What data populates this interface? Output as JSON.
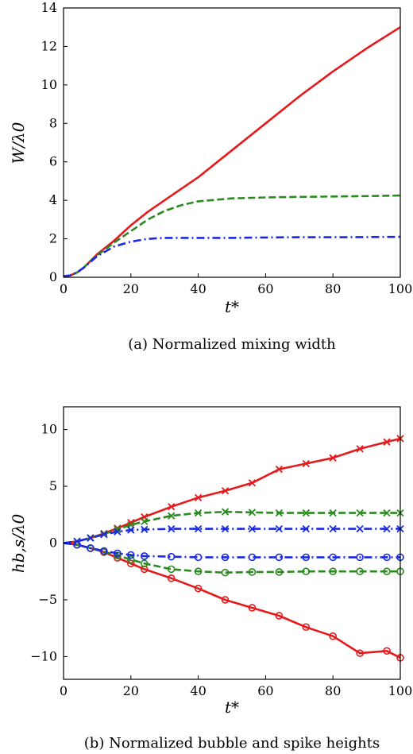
{
  "chart_data": [
    {
      "type": "line",
      "caption": "(a) Normalized mixing width",
      "xlabel": "t*",
      "ylabel": "W/λ0",
      "xlim": [
        0,
        100
      ],
      "ylim": [
        0,
        14
      ],
      "xticks": [
        0,
        20,
        40,
        60,
        80,
        100
      ],
      "yticks": [
        0,
        2,
        4,
        6,
        8,
        10,
        12,
        14
      ],
      "grid": false,
      "series": [
        {
          "style": "solid",
          "color": "#e41a1c",
          "x": [
            0,
            2,
            4,
            6,
            8,
            10,
            15,
            20,
            25,
            30,
            40,
            50,
            60,
            70,
            80,
            90,
            100
          ],
          "y": [
            0.05,
            0.1,
            0.25,
            0.5,
            0.85,
            1.2,
            1.9,
            2.7,
            3.4,
            4.0,
            5.2,
            6.6,
            8.0,
            9.4,
            10.7,
            11.9,
            13.0
          ]
        },
        {
          "style": "dashed",
          "color": "#2a8a1f",
          "x": [
            0,
            2,
            4,
            6,
            8,
            10,
            15,
            20,
            25,
            30,
            35,
            40,
            50,
            60,
            70,
            80,
            90,
            100
          ],
          "y": [
            0.05,
            0.1,
            0.25,
            0.5,
            0.85,
            1.15,
            1.8,
            2.4,
            3.0,
            3.45,
            3.75,
            3.95,
            4.1,
            4.15,
            4.18,
            4.2,
            4.22,
            4.25
          ]
        },
        {
          "style": "dashdot",
          "color": "#1a2ae0",
          "x": [
            0,
            2,
            4,
            6,
            8,
            10,
            15,
            20,
            25,
            30,
            40,
            50,
            60,
            70,
            80,
            90,
            100
          ],
          "y": [
            0.05,
            0.1,
            0.25,
            0.5,
            0.8,
            1.1,
            1.6,
            1.85,
            2.0,
            2.05,
            2.05,
            2.05,
            2.07,
            2.08,
            2.08,
            2.09,
            2.1
          ]
        }
      ]
    },
    {
      "type": "line",
      "caption": "(b) Normalized bubble and spike heights",
      "xlabel": "t*",
      "ylabel": "hb,s/λ0",
      "xlim": [
        0,
        100
      ],
      "ylim": [
        -12,
        12
      ],
      "xticks": [
        0,
        20,
        40,
        60,
        80,
        100
      ],
      "yticks": [
        -10,
        -5,
        0,
        5,
        10
      ],
      "grid": false,
      "series": [
        {
          "style": "solid",
          "color": "#e41a1c",
          "marker": "x",
          "x": [
            0,
            4,
            8,
            12,
            16,
            20,
            24,
            32,
            40,
            48,
            56,
            64,
            72,
            80,
            88,
            96,
            100
          ],
          "y": [
            0,
            0.15,
            0.45,
            0.85,
            1.3,
            1.8,
            2.3,
            3.2,
            4.0,
            4.6,
            5.3,
            6.5,
            7.0,
            7.5,
            8.3,
            8.9,
            9.2
          ]
        },
        {
          "style": "solid",
          "color": "#e41a1c",
          "marker": "o",
          "x": [
            0,
            4,
            8,
            12,
            16,
            20,
            24,
            32,
            40,
            48,
            56,
            64,
            72,
            80,
            88,
            96,
            100
          ],
          "y": [
            0,
            -0.15,
            -0.45,
            -0.8,
            -1.3,
            -1.8,
            -2.3,
            -3.1,
            -4.0,
            -5.0,
            -5.7,
            -6.4,
            -7.4,
            -8.2,
            -9.7,
            -9.5,
            -10.1
          ]
        },
        {
          "style": "dashed",
          "color": "#2a8a1f",
          "marker": "x",
          "x": [
            0,
            4,
            8,
            12,
            16,
            20,
            24,
            32,
            40,
            48,
            56,
            64,
            72,
            80,
            88,
            96,
            100
          ],
          "y": [
            0,
            0.15,
            0.45,
            0.8,
            1.2,
            1.6,
            1.9,
            2.4,
            2.65,
            2.75,
            2.7,
            2.65,
            2.65,
            2.65,
            2.65,
            2.65,
            2.65
          ]
        },
        {
          "style": "dashed",
          "color": "#2a8a1f",
          "marker": "o",
          "x": [
            0,
            4,
            8,
            12,
            16,
            20,
            24,
            32,
            40,
            48,
            56,
            64,
            72,
            80,
            88,
            96,
            100
          ],
          "y": [
            0,
            -0.15,
            -0.45,
            -0.75,
            -1.1,
            -1.45,
            -1.8,
            -2.3,
            -2.5,
            -2.6,
            -2.55,
            -2.55,
            -2.5,
            -2.5,
            -2.5,
            -2.5,
            -2.5
          ]
        },
        {
          "style": "dashdot",
          "color": "#1a2ae0",
          "marker": "x",
          "x": [
            0,
            4,
            8,
            12,
            16,
            20,
            24,
            32,
            40,
            48,
            56,
            64,
            72,
            80,
            88,
            96,
            100
          ],
          "y": [
            0,
            0.15,
            0.45,
            0.75,
            1.0,
            1.15,
            1.2,
            1.25,
            1.25,
            1.25,
            1.25,
            1.25,
            1.25,
            1.25,
            1.25,
            1.25,
            1.25
          ]
        },
        {
          "style": "dashdot",
          "color": "#1a2ae0",
          "marker": "o",
          "x": [
            0,
            4,
            8,
            12,
            16,
            20,
            24,
            32,
            40,
            48,
            56,
            64,
            72,
            80,
            88,
            96,
            100
          ],
          "y": [
            0,
            -0.15,
            -0.45,
            -0.7,
            -0.9,
            -1.05,
            -1.15,
            -1.2,
            -1.25,
            -1.25,
            -1.25,
            -1.25,
            -1.25,
            -1.25,
            -1.25,
            -1.25,
            -1.25
          ]
        }
      ]
    }
  ]
}
